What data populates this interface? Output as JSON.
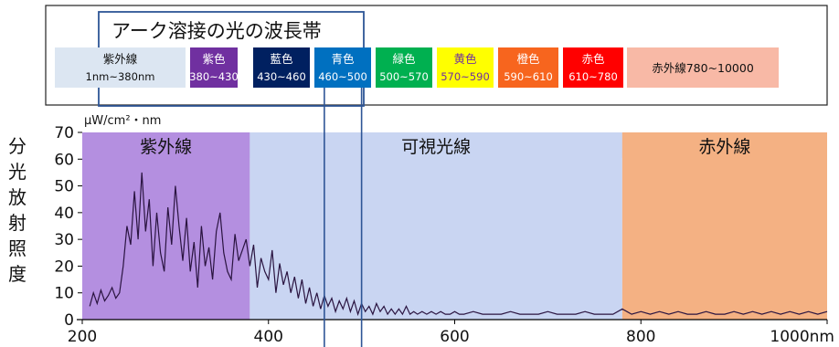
{
  "chart_data": {
    "type": "line",
    "title": "アーク溶接の光の波長帯",
    "unit_label": "μW/cm²・nm",
    "ylabel": "分光放射照度",
    "x_ticks": [
      "200",
      "400",
      "600",
      "800",
      "1000nm"
    ],
    "y_ticks": [
      "0",
      "10",
      "20",
      "30",
      "40",
      "50",
      "60",
      "70"
    ],
    "xlim": [
      200,
      1000
    ],
    "ylim": [
      0,
      70
    ],
    "regions": [
      {
        "label": "紫外線",
        "from": 200,
        "to": 380,
        "color": "#b48fe0"
      },
      {
        "label": "可視光線",
        "from": 380,
        "to": 780,
        "color": "#c9d5f2"
      },
      {
        "label": "赤外線",
        "from": 780,
        "to": 1000,
        "color": "#f4b183"
      }
    ],
    "bands": [
      {
        "name": "紫外線",
        "range": "1nm~380nm",
        "bg": "#dce6f2",
        "fg": "#111111"
      },
      {
        "name": "紫色",
        "range": "380~430",
        "bg": "#7030a0",
        "fg": "#ffffff"
      },
      {
        "name": "藍色",
        "range": "430~460",
        "bg": "#002060",
        "fg": "#ffffff"
      },
      {
        "name": "青色",
        "range": "460~500",
        "bg": "#0070c0",
        "fg": "#ffffff"
      },
      {
        "name": "緑色",
        "range": "500~570",
        "bg": "#00b050",
        "fg": "#ffffff"
      },
      {
        "name": "黄色",
        "range": "570~590",
        "bg": "#ffff00",
        "fg": "#7030a0"
      },
      {
        "name": "橙色",
        "range": "590~610",
        "bg": "#f7651e",
        "fg": "#ffffff"
      },
      {
        "name": "赤色",
        "range": "610~780",
        "bg": "#ff0000",
        "fg": "#ffffff"
      },
      {
        "name": "赤外線",
        "range": "780~10000",
        "bg": "#f8b9a6",
        "fg": "#111111"
      }
    ],
    "highlight_range": [
      460,
      500
    ],
    "series": [
      {
        "x": [
          208,
          212,
          216,
          220,
          224,
          228,
          232,
          236,
          240,
          244,
          248,
          252,
          256,
          260,
          264,
          268,
          272,
          276,
          280,
          284,
          288,
          292,
          296,
          300,
          304,
          308,
          312,
          316,
          320,
          324,
          328,
          332,
          336,
          340,
          344,
          348,
          352,
          356,
          360,
          364,
          368,
          372,
          376,
          380,
          384,
          388,
          392,
          396,
          400,
          404,
          408,
          412,
          416,
          420,
          424,
          428,
          432,
          436,
          440,
          444,
          448,
          452,
          456,
          460,
          464,
          468,
          472,
          476,
          480,
          484,
          488,
          492,
          496,
          500,
          504,
          508,
          512,
          516,
          520,
          524,
          528,
          532,
          536,
          540,
          544,
          548,
          552,
          556,
          560,
          565,
          570,
          575,
          580,
          585,
          590,
          595,
          600,
          605,
          610,
          620,
          630,
          640,
          650,
          660,
          670,
          680,
          690,
          700,
          710,
          720,
          730,
          740,
          750,
          760,
          770,
          780,
          790,
          800,
          810,
          820,
          830,
          840,
          850,
          860,
          870,
          880,
          890,
          900,
          910,
          920,
          930,
          940,
          950,
          960,
          970,
          980,
          990,
          1000
        ],
        "y": [
          5,
          10,
          6,
          11,
          7,
          9,
          12,
          8,
          10,
          20,
          35,
          28,
          48,
          30,
          55,
          33,
          45,
          20,
          40,
          25,
          18,
          42,
          28,
          50,
          35,
          22,
          38,
          18,
          29,
          12,
          35,
          20,
          27,
          15,
          33,
          40,
          25,
          18,
          15,
          32,
          22,
          26,
          30,
          20,
          28,
          12,
          23,
          18,
          15,
          26,
          10,
          21,
          13,
          18,
          10,
          16,
          8,
          15,
          6,
          12,
          5,
          10,
          4,
          9,
          5,
          8,
          3,
          7,
          4,
          8,
          3,
          7,
          2,
          6,
          3,
          5,
          2,
          6,
          3,
          5,
          2,
          4,
          2,
          4,
          2,
          5,
          2,
          3,
          2,
          3,
          2,
          3,
          2,
          3,
          2,
          2,
          3,
          2,
          2,
          3,
          2,
          2,
          2,
          3,
          2,
          2,
          2,
          3,
          2,
          2,
          2,
          3,
          2,
          2,
          2,
          4,
          2,
          3,
          2,
          3,
          2,
          3,
          2,
          2,
          3,
          2,
          2,
          3,
          2,
          3,
          2,
          3,
          2,
          3,
          2,
          3,
          2,
          3
        ]
      }
    ],
    "grid": false,
    "legend": "none"
  }
}
